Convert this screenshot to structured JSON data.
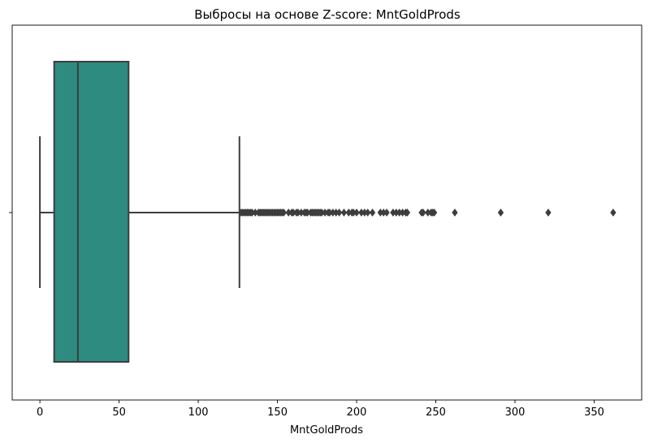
{
  "chart_data": {
    "type": "box",
    "title": "Выбросы на основе Z-score: MntGoldProds",
    "xlabel": "MntGoldProds",
    "ylabel": "",
    "xlim": [
      -17.5,
      380
    ],
    "xticks": [
      0,
      50,
      100,
      150,
      200,
      250,
      300,
      350
    ],
    "grid": false,
    "box": {
      "whisker_low": 0,
      "q1": 9,
      "median": 24,
      "q3": 56,
      "whisker_high": 126,
      "color": "#2e8b7f",
      "edge_color": "#3d3d3d"
    },
    "outliers": [
      127,
      128,
      129,
      130,
      131,
      132,
      133,
      134,
      136,
      138,
      139,
      140,
      141,
      142,
      143,
      144,
      145,
      146,
      147,
      148,
      149,
      150,
      151,
      152,
      153,
      154,
      157,
      159,
      160,
      162,
      163,
      165,
      167,
      168,
      169,
      171,
      172,
      173,
      174,
      175,
      176,
      177,
      178,
      180,
      182,
      183,
      185,
      187,
      189,
      192,
      195,
      197,
      198,
      200,
      203,
      205,
      207,
      210,
      215,
      217,
      219,
      223,
      225,
      227,
      229,
      231,
      232,
      241,
      242,
      245,
      247,
      248,
      249,
      262,
      291,
      321,
      362
    ]
  }
}
